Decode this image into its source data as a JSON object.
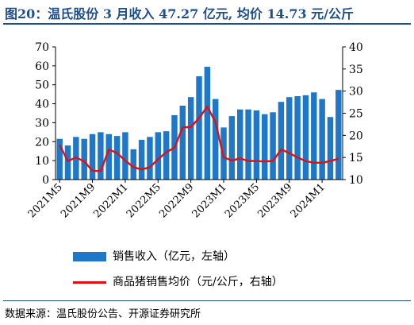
{
  "title": "图20：温氏股份 3 月收入 47.27 亿元, 均价 14.73 元/公斤",
  "source": "数据来源：温氏股份公告、开源证券研究所",
  "chart_data": {
    "type": "bar",
    "x": [
      "2021M5",
      "2021M6",
      "2021M7",
      "2021M8",
      "2021M9",
      "2021M10",
      "2021M11",
      "2021M12",
      "2022M1",
      "2022M2",
      "2022M3",
      "2022M4",
      "2022M5",
      "2022M6",
      "2022M7",
      "2022M8",
      "2022M9",
      "2022M10",
      "2022M11",
      "2022M12",
      "2023M1",
      "2023M2",
      "2023M3",
      "2023M4",
      "2023M5",
      "2023M6",
      "2023M7",
      "2023M8",
      "2023M9",
      "2023M10",
      "2023M11",
      "2023M12",
      "2024M1",
      "2024M2",
      "2024M3"
    ],
    "xtick_labels": [
      "2021M5",
      "2021M9",
      "2022M1",
      "2022M5",
      "2022M9",
      "2023M1",
      "2023M5",
      "2023M9",
      "2024M1"
    ],
    "series": [
      {
        "name": "销售收入（亿元，左轴）",
        "type": "bar",
        "axis": "left",
        "color": "#1f77c8",
        "values": [
          21.5,
          18,
          22.5,
          21.5,
          24,
          25,
          24,
          23,
          25,
          16,
          21,
          22.5,
          25,
          25.5,
          34,
          39,
          43.5,
          54.5,
          59.5,
          42.5,
          27.5,
          33.5,
          37,
          37,
          36.5,
          34.5,
          35.5,
          41,
          43.5,
          44,
          44.5,
          46,
          42.5,
          33,
          47.3
        ]
      },
      {
        "name": "商品猪销售均价（元/公斤，右轴）",
        "type": "line",
        "axis": "right",
        "color": "#e01010",
        "values": [
          17.8,
          14.2,
          15.0,
          14.1,
          12.0,
          11.9,
          16.8,
          16.0,
          14.3,
          12.8,
          12.3,
          12.8,
          14.6,
          16.2,
          17.2,
          21.8,
          21.9,
          23.9,
          26.5,
          23.0,
          15.0,
          14.3,
          14.8,
          14.2,
          14.2,
          14.1,
          14.2,
          16.8,
          16.0,
          15.0,
          14.2,
          13.8,
          13.8,
          14.2,
          14.73
        ]
      }
    ],
    "y_left": {
      "min": 0,
      "max": 70,
      "ticks": [
        0,
        10,
        20,
        30,
        40,
        50,
        60,
        70
      ]
    },
    "y_right": {
      "min": 10,
      "max": 40,
      "ticks": [
        10,
        15,
        20,
        25,
        30,
        35,
        40
      ]
    },
    "legend": [
      {
        "label": "销售收入（亿元，左轴）",
        "kind": "bar"
      },
      {
        "label": "商品猪销售均价（元/公斤，右轴）",
        "kind": "line"
      }
    ]
  }
}
